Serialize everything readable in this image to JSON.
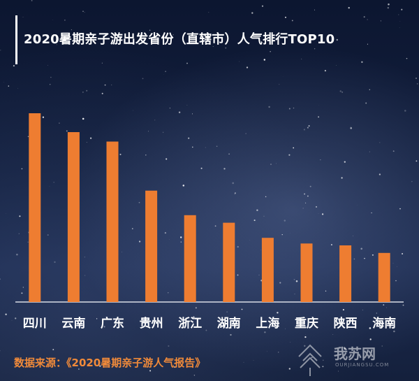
{
  "title": "2020暑期亲子游出发省份（直辖市）人气排行TOP10",
  "source": "数据来源：《2020暑期亲子游人气报告》",
  "watermark": {
    "text": "我苏网",
    "sub": "OURJIANGSU.COM"
  },
  "colors": {
    "bar": "#ee7d31",
    "axis": "#d9dde6",
    "label": "#ffffff",
    "source": "#f08a3a"
  },
  "chart_data": {
    "type": "bar",
    "categories": [
      "四川",
      "云南",
      "广东",
      "贵州",
      "浙江",
      "湖南",
      "上海",
      "重庆",
      "陕西",
      "海南"
    ],
    "values": [
      100,
      90,
      85,
      59,
      46,
      42,
      34,
      31,
      30,
      26
    ],
    "ylim": [
      0,
      100
    ],
    "grid": false,
    "legend": "none"
  }
}
